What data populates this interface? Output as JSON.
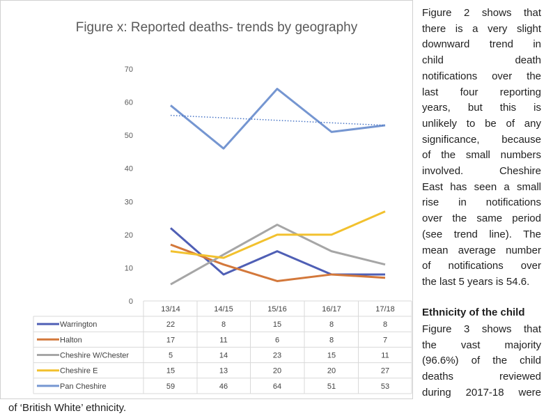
{
  "chart_data": {
    "type": "line",
    "title": "Figure x: Reported deaths- trends by geography",
    "categories": [
      "13/14",
      "14/15",
      "15/16",
      "16/17",
      "17/18"
    ],
    "ylim": [
      0,
      70
    ],
    "yticks": [
      0,
      10,
      20,
      30,
      40,
      50,
      60,
      70
    ],
    "xlabel": "",
    "ylabel": "",
    "series": [
      {
        "name": "Warrington",
        "color": "#4f5fb5",
        "values": [
          22,
          8,
          15,
          8,
          8
        ]
      },
      {
        "name": "Halton",
        "color": "#d3783b",
        "values": [
          17,
          11,
          6,
          8,
          7
        ]
      },
      {
        "name": "Cheshire W/Chester",
        "color": "#a6a6a6",
        "values": [
          5,
          14,
          23,
          15,
          11
        ]
      },
      {
        "name": "Cheshire E",
        "color": "#f2c12e",
        "values": [
          15,
          13,
          20,
          20,
          27
        ]
      },
      {
        "name": "Pan Cheshire",
        "color": "#7596d1",
        "values": [
          59,
          46,
          64,
          51,
          53
        ]
      }
    ],
    "trendline": {
      "series": "Pan Cheshire",
      "start": 56,
      "end": 53,
      "color": "#4472c4",
      "style": "dotted"
    },
    "data_table": true
  },
  "text": {
    "para1": [
      "Figure 2 shows that",
      "there is a very slight",
      "downward trend in",
      "child death",
      "notifications over the",
      "last four reporting",
      "years, but this is",
      "unlikely to be of any",
      "significance, because",
      "of the small numbers",
      "involved. Cheshire",
      "East has seen a small",
      "rise in notifications",
      "over the same period",
      "(see trend line). The",
      "mean average number",
      "of notifications over",
      "the last 5 years is 54.6."
    ],
    "heading": "Ethnicity of the child",
    "para2": [
      "Figure 3 shows that",
      "the vast majority",
      "(96.6%) of the child",
      "deaths reviewed",
      "during 2017-18 were"
    ],
    "bottom_line": "of ‘British White’ ethnicity."
  }
}
